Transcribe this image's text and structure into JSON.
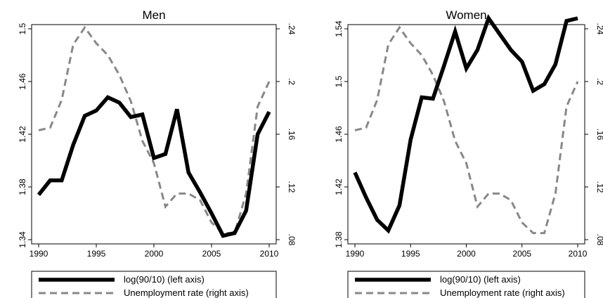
{
  "chart_data": [
    {
      "type": "line",
      "title": "Men",
      "x_ticks": [
        1990,
        1995,
        2000,
        2005,
        2010
      ],
      "xlim": [
        1990,
        2010
      ],
      "y_left_ticks": [
        "1.34",
        "1.38",
        "1.42",
        "1.46",
        "1.5"
      ],
      "ylim_left": [
        1.34,
        1.5
      ],
      "y_right_ticks": [
        ".08",
        ".12",
        ".16",
        ".2",
        ".24"
      ],
      "ylim_right": [
        0.08,
        0.24
      ],
      "series": [
        {
          "name": "log(90/10) (left axis)",
          "axis": "left",
          "style": "solid-thick",
          "color": "#000000",
          "x": [
            1990,
            1991,
            1992,
            1993,
            1994,
            1995,
            1996,
            1997,
            1998,
            1999,
            2000,
            2001,
            2002,
            2003,
            2004,
            2005,
            2006,
            2007,
            2008,
            2009,
            2010
          ],
          "y": [
            1.374,
            1.385,
            1.385,
            1.412,
            1.434,
            1.438,
            1.448,
            1.444,
            1.433,
            1.435,
            1.402,
            1.405,
            1.439,
            1.391,
            1.376,
            1.36,
            1.343,
            1.345,
            1.362,
            1.42,
            1.437
          ]
        },
        {
          "name": "Unemployment rate (right axis)",
          "axis": "right",
          "style": "dashed",
          "color": "#888888",
          "x": [
            1990,
            1991,
            1992,
            1993,
            1994,
            1995,
            1996,
            1997,
            1998,
            1999,
            2000,
            2001,
            2002,
            2003,
            2004,
            2005,
            2006,
            2007,
            2008,
            2009,
            2010
          ],
          "y": [
            0.163,
            0.165,
            0.186,
            0.228,
            0.241,
            0.229,
            0.22,
            0.205,
            0.185,
            0.155,
            0.138,
            0.105,
            0.115,
            0.115,
            0.11,
            0.093,
            0.085,
            0.085,
            0.115,
            0.181,
            0.2
          ]
        }
      ]
    },
    {
      "type": "line",
      "title": "Women",
      "x_ticks": [
        1990,
        1995,
        2000,
        2005,
        2010
      ],
      "xlim": [
        1990,
        2010
      ],
      "y_left_ticks": [
        "1.38",
        "1.42",
        "1.46",
        "1.5",
        "1.54"
      ],
      "ylim_left": [
        1.38,
        1.54
      ],
      "y_right_ticks": [
        ".08",
        ".12",
        ".16",
        ".2",
        ".24"
      ],
      "ylim_right": [
        0.08,
        0.24
      ],
      "series": [
        {
          "name": "log(90/10) (left axis)",
          "axis": "left",
          "style": "solid-thick",
          "color": "#000000",
          "x": [
            1990,
            1991,
            1992,
            1993,
            1994,
            1995,
            1996,
            1997,
            1998,
            1999,
            2000,
            2001,
            2002,
            2003,
            2004,
            2005,
            2006,
            2007,
            2008,
            2009,
            2010
          ],
          "y": [
            1.431,
            1.412,
            1.395,
            1.387,
            1.406,
            1.456,
            1.488,
            1.487,
            1.512,
            1.538,
            1.51,
            1.524,
            1.548,
            1.536,
            1.524,
            1.515,
            1.493,
            1.498,
            1.513,
            1.546,
            1.548
          ]
        },
        {
          "name": "Unemployment rate (right axis)",
          "axis": "right",
          "style": "dashed",
          "color": "#888888",
          "x": [
            1990,
            1991,
            1992,
            1993,
            1994,
            1995,
            1996,
            1997,
            1998,
            1999,
            2000,
            2001,
            2002,
            2003,
            2004,
            2005,
            2006,
            2007,
            2008,
            2009,
            2010
          ],
          "y": [
            0.163,
            0.165,
            0.186,
            0.228,
            0.241,
            0.229,
            0.22,
            0.205,
            0.185,
            0.155,
            0.138,
            0.105,
            0.115,
            0.115,
            0.11,
            0.093,
            0.085,
            0.085,
            0.115,
            0.181,
            0.2
          ]
        }
      ]
    }
  ]
}
